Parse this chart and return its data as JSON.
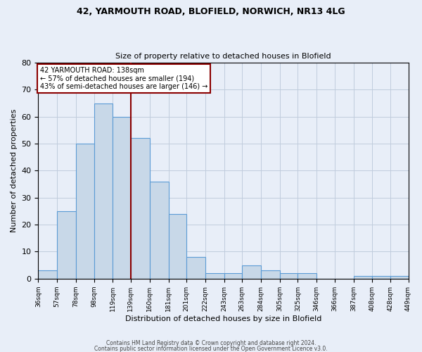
{
  "title_line1": "42, YARMOUTH ROAD, BLOFIELD, NORWICH, NR13 4LG",
  "title_line2": "Size of property relative to detached houses in Blofield",
  "xlabel": "Distribution of detached houses by size in Blofield",
  "ylabel": "Number of detached properties",
  "bar_left_edges": [
    36,
    57,
    78,
    98,
    119,
    139,
    160,
    181,
    201,
    222,
    243,
    263,
    284,
    305,
    325,
    346,
    366,
    387,
    408,
    428
  ],
  "bar_heights": [
    3,
    25,
    50,
    65,
    60,
    52,
    36,
    24,
    8,
    2,
    2,
    5,
    3,
    2,
    2,
    0,
    0,
    1,
    1,
    1
  ],
  "bar_color": "#c8d8e8",
  "bar_edgecolor": "#5b9bd5",
  "vline_x": 139,
  "vline_color": "#8b0000",
  "annotation_text": "42 YARMOUTH ROAD: 138sqm\n← 57% of detached houses are smaller (194)\n43% of semi-detached houses are larger (146) →",
  "annotation_box_color": "white",
  "annotation_box_edgecolor": "#8b0000",
  "ylim": [
    0,
    80
  ],
  "yticks": [
    0,
    10,
    20,
    30,
    40,
    50,
    60,
    70,
    80
  ],
  "xtick_labels": [
    "36sqm",
    "57sqm",
    "78sqm",
    "98sqm",
    "119sqm",
    "139sqm",
    "160sqm",
    "181sqm",
    "201sqm",
    "222sqm",
    "243sqm",
    "263sqm",
    "284sqm",
    "305sqm",
    "325sqm",
    "346sqm",
    "366sqm",
    "387sqm",
    "408sqm",
    "428sqm",
    "449sqm"
  ],
  "footer_line1": "Contains HM Land Registry data © Crown copyright and database right 2024.",
  "footer_line2": "Contains public sector information licensed under the Open Government Licence v3.0.",
  "grid_color": "#c0ccdd",
  "background_color": "#e8eef8"
}
